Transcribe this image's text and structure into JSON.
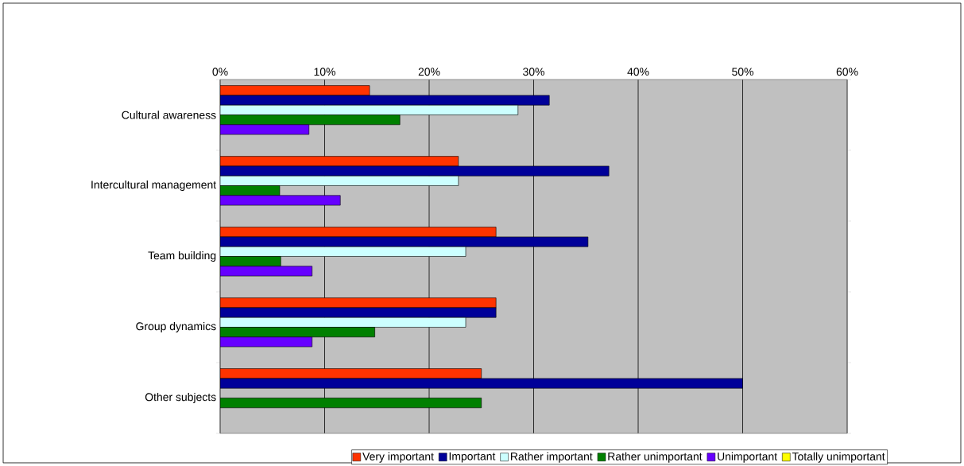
{
  "chart_data": {
    "type": "bar",
    "orientation": "horizontal",
    "categories": [
      "Cultural awareness",
      "Intercultural management",
      "Team building",
      "Group dynamics",
      "Other subjects"
    ],
    "series": [
      {
        "name": "Very important",
        "color": "#ff3300",
        "values": [
          14.3,
          22.8,
          26.4,
          26.4,
          25
        ]
      },
      {
        "name": "Important",
        "color": "#000099",
        "values": [
          31.5,
          37.2,
          35.2,
          26.4,
          50
        ]
      },
      {
        "name": "Rather important",
        "color": "#ccffff",
        "values": [
          28.5,
          22.8,
          23.5,
          23.5,
          0
        ]
      },
      {
        "name": "Rather unimportant",
        "color": "#008000",
        "values": [
          17.2,
          5.7,
          5.8,
          14.8,
          25
        ]
      },
      {
        "name": "Unimportant",
        "color": "#6600ff",
        "values": [
          8.5,
          11.5,
          8.8,
          8.8,
          0
        ]
      },
      {
        "name": "Totally unimportant",
        "color": "#ffff00",
        "values": [
          0,
          0,
          0,
          0,
          0
        ]
      }
    ],
    "xlim": [
      0,
      60
    ],
    "xticks": [
      {
        "value": 0,
        "label": "0%"
      },
      {
        "value": 10,
        "label": "10%"
      },
      {
        "value": 20,
        "label": "20%"
      },
      {
        "value": 30,
        "label": "30%"
      },
      {
        "value": 40,
        "label": "40%"
      },
      {
        "value": 50,
        "label": "50%"
      },
      {
        "value": 60,
        "label": "60%"
      }
    ],
    "grid": "x",
    "legend": "bottom"
  }
}
